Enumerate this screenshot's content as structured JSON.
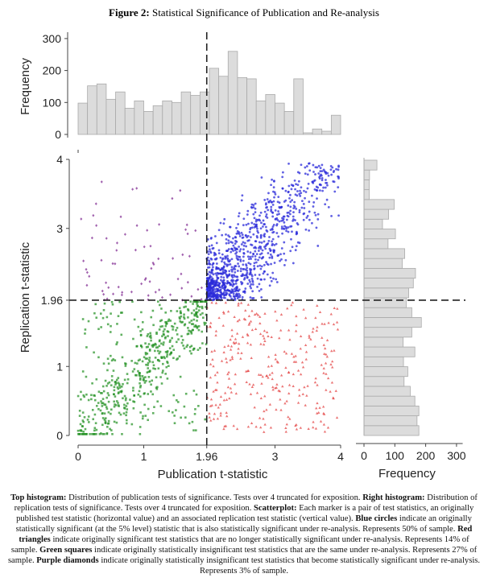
{
  "figure": {
    "label": "Figure 2:",
    "title": "Statistical Significance of Publication and Re-analysis"
  },
  "chart_data": [
    {
      "type": "bar",
      "name": "top-histogram",
      "ylabel": "Frequency",
      "yticks": [
        "0",
        "100",
        "200",
        "300"
      ],
      "ylim": [
        0,
        320
      ],
      "xlim": [
        0,
        4
      ],
      "bin_width": 0.143,
      "values": [
        98,
        152,
        158,
        110,
        133,
        82,
        105,
        72,
        90,
        105,
        100,
        133,
        122,
        133,
        207,
        182,
        260,
        178,
        174,
        105,
        125,
        98,
        72,
        174,
        5,
        17,
        10,
        60
      ],
      "reference_line": 1.96,
      "bar_color": "#dcdcdc"
    },
    {
      "type": "bar",
      "orientation": "horizontal",
      "name": "right-histogram",
      "xlabel": "Frequency",
      "xticks": [
        "0",
        "100",
        "200",
        "300"
      ],
      "xlim": [
        0,
        320
      ],
      "ylim": [
        0,
        4
      ],
      "values_bottom_to_top": [
        178,
        172,
        178,
        165,
        150,
        130,
        142,
        128,
        165,
        127,
        155,
        186,
        155,
        137,
        145,
        160,
        167,
        124,
        132,
        78,
        102,
        60,
        80,
        98,
        17,
        17,
        18,
        42
      ],
      "reference_line": 1.96,
      "bar_color": "#dcdcdc"
    },
    {
      "type": "scatter",
      "name": "scatterplot",
      "xlabel": "Publication t-statistic",
      "ylabel": "Replication t-statistic",
      "xlim": [
        0,
        4
      ],
      "ylim": [
        0,
        4
      ],
      "xticks": [
        "0",
        "1",
        "1.96",
        "3",
        "4"
      ],
      "yticks": [
        "0",
        "1",
        "1.96",
        "3",
        "4"
      ],
      "threshold": 1.96,
      "groups": [
        {
          "label": "Blue circles",
          "marker": "circle",
          "color": "#2b2bd9",
          "share_percent": 50,
          "quadrant": "x>1.96, y>1.96"
        },
        {
          "label": "Red triangles",
          "marker": "triangle",
          "color": "#e23b3b",
          "share_percent": 14,
          "quadrant": "x>1.96, y<1.96"
        },
        {
          "label": "Green squares",
          "marker": "square",
          "color": "#1e8f1e",
          "share_percent": 27,
          "quadrant": "x<1.96, y<1.96"
        },
        {
          "label": "Purple diamonds",
          "marker": "diamond",
          "color": "#8a3a9a",
          "share_percent": 3,
          "quadrant": "x<1.96, y>1.96"
        }
      ]
    }
  ],
  "caption": {
    "top_label": "Top histogram:",
    "top_text": " Distribution of publication tests of significance. Tests over 4 truncated for exposition. ",
    "right_label": "Right histogram:",
    "right_text": " Distribution of replication tests of significance. Tests over 4 truncated for exposition. ",
    "scatter_label": "Scatterplot:",
    "scatter_text": " Each marker is a pair of test statistics, an originally published test statistic (horizontal value) and an associated replication test statistic (vertical value). ",
    "blue_label": "Blue circles",
    "blue_text": " indicate an originally statistically significant (at the 5% level) statistic that is also statistically significant under re-analysis. Represents 50% of sample. ",
    "red_label": "Red triangles",
    "red_text": " indicate originally significant test statistics that are no longer statistically significant under re-analysis. Represents 14% of sample. ",
    "green_label": "Green squares",
    "green_text": " indicate originally statistically insignificant test statistics that are the same under re-analysis. Represents 27% of sample. ",
    "purple_label": "Purple diamonds",
    "purple_text": " indicate originally statistically insignificant test statistics that become statistically significant under re-analysis. Represents 3% of sample."
  }
}
